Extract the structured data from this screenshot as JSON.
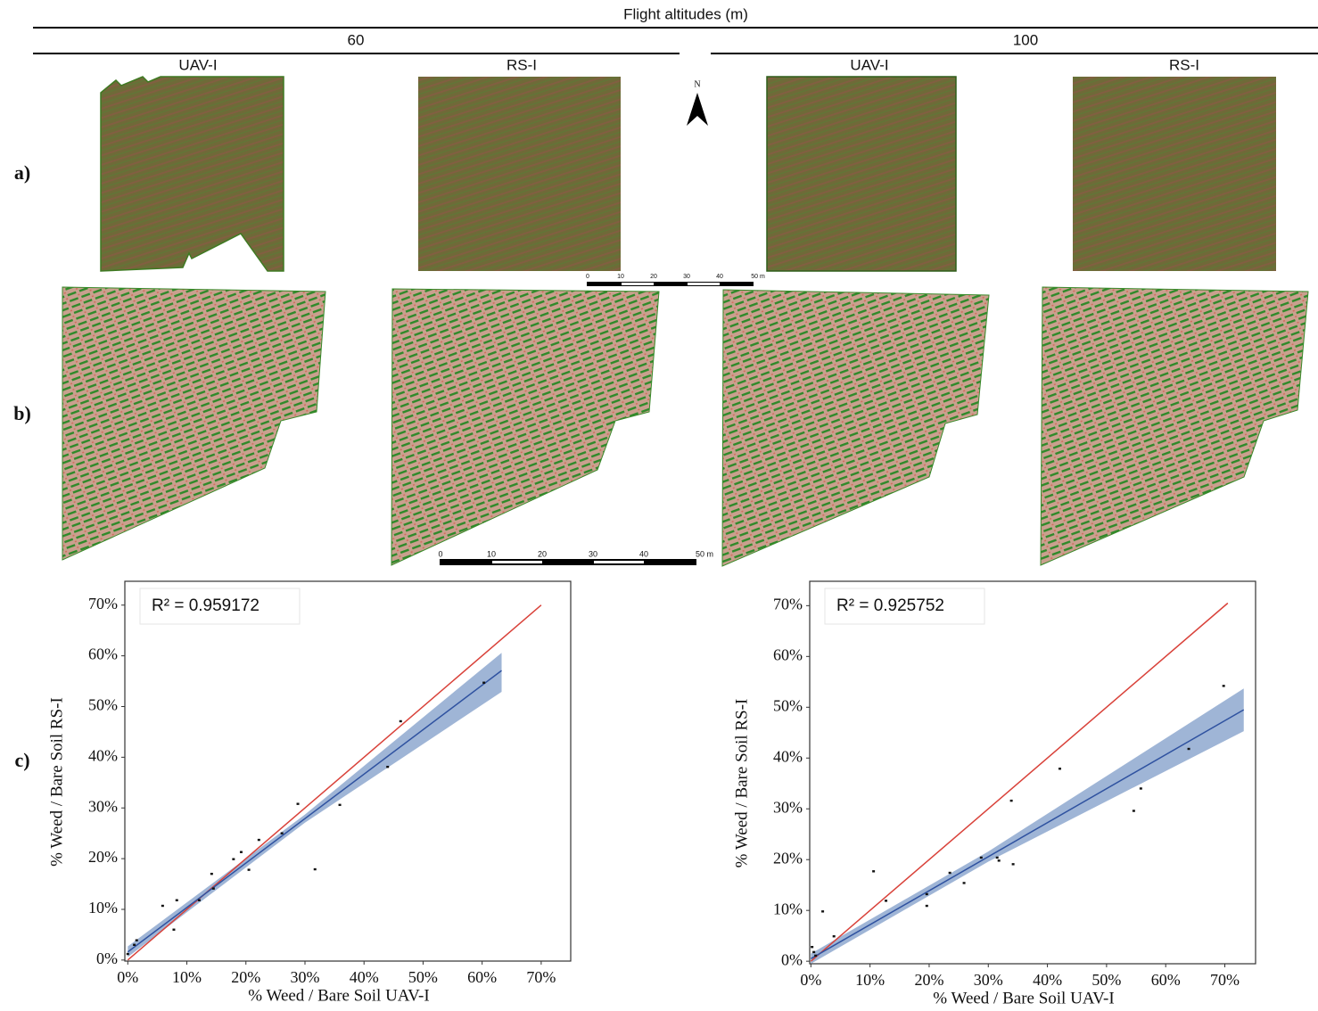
{
  "header": {
    "title": "Flight altitudes (m)",
    "altitudes": [
      "60",
      "100"
    ],
    "sensors": [
      "UAV-I",
      "RS-I",
      "UAV-I",
      "RS-I"
    ]
  },
  "row_labels": [
    "a)",
    "b)",
    "c)"
  ],
  "north": "N",
  "scale_bar": [
    "0",
    "10",
    "20",
    "30",
    "40",
    "50 m"
  ],
  "chart_data": [
    {
      "type": "scatter",
      "annotation": "R² = 0.959172",
      "x_label": "% Weed / Bare Soil UAV-I",
      "y_label": "% Weed / Bare Soil RS-I",
      "xlim": [
        -0.5,
        75
      ],
      "ylim": [
        -0.2,
        74.7
      ],
      "xticks": [
        {
          "value": 0,
          "label": "0%"
        },
        {
          "value": 10,
          "label": "10%"
        },
        {
          "value": 20,
          "label": "20%"
        },
        {
          "value": 30,
          "label": "30%"
        },
        {
          "value": 40,
          "label": "40%"
        },
        {
          "value": 50,
          "label": "50%"
        },
        {
          "value": 60,
          "label": "60%"
        },
        {
          "value": 70,
          "label": "70%"
        }
      ],
      "yticks": [
        {
          "value": 0,
          "label": "0%"
        },
        {
          "value": 10,
          "label": "10%"
        },
        {
          "value": 20,
          "label": "20%"
        },
        {
          "value": 30,
          "label": "30%"
        },
        {
          "value": 40,
          "label": "40%"
        },
        {
          "value": 50,
          "label": "50%"
        },
        {
          "value": 60,
          "label": "60%"
        },
        {
          "value": 70,
          "label": "70%"
        }
      ],
      "points": {
        "color": "#111111",
        "x": [
          0,
          1.1,
          1.5,
          5.9,
          8.3,
          7.8,
          12.1,
          14.2,
          14.5,
          17.9,
          19.2,
          20.5,
          22.2,
          26.1,
          28.8,
          31.7,
          35.9,
          44.0,
          46.2,
          60.3
        ],
        "y": [
          1.2,
          3.0,
          3.9,
          10.7,
          11.8,
          6.0,
          11.8,
          17.0,
          14.1,
          19.9,
          21.3,
          17.8,
          23.7,
          25.0,
          30.8,
          17.9,
          30.6,
          38.1,
          47.1,
          54.7
        ]
      },
      "band": {
        "color": "#7f9cc8",
        "x": [
          0,
          30,
          63.3
        ],
        "lower": [
          0.6,
          27.1,
          52.9
        ],
        "upper": [
          2.7,
          28.7,
          60.6
        ]
      },
      "fit_line": {
        "color": "#2f52a0",
        "x": [
          0,
          63.3
        ],
        "y": [
          1.6,
          57.1
        ]
      },
      "identity_line": {
        "color": "#d9423a",
        "x": [
          0,
          70
        ],
        "y": [
          0,
          70
        ]
      }
    },
    {
      "type": "scatter",
      "annotation": "R² = 0.925752",
      "x_label": "% Weed / Bare Soil UAV-I",
      "y_label": "% Weed / Bare Soil RS-I",
      "xlim": [
        -0.2,
        75.2
      ],
      "ylim": [
        -0.5,
        74.8
      ],
      "xticks": [
        {
          "value": 0,
          "label": "0%"
        },
        {
          "value": 10,
          "label": "10%"
        },
        {
          "value": 20,
          "label": "20%"
        },
        {
          "value": 30,
          "label": "30%"
        },
        {
          "value": 40,
          "label": "40%"
        },
        {
          "value": 50,
          "label": "50%"
        },
        {
          "value": 60,
          "label": "60%"
        },
        {
          "value": 70,
          "label": "70%"
        }
      ],
      "yticks": [
        {
          "value": 0,
          "label": "0%"
        },
        {
          "value": 10,
          "label": "10%"
        },
        {
          "value": 20,
          "label": "20%"
        },
        {
          "value": 30,
          "label": "30%"
        },
        {
          "value": 40,
          "label": "40%"
        },
        {
          "value": 50,
          "label": "50%"
        },
        {
          "value": 60,
          "label": "60%"
        },
        {
          "value": 70,
          "label": "70%"
        }
      ],
      "points": {
        "color": "#111111",
        "x": [
          0.2,
          0.5,
          0.8,
          2.0,
          3.9,
          10.6,
          12.7,
          19.6,
          19.6,
          23.5,
          25.9,
          28.8,
          31.5,
          31.8,
          33.9,
          34.2,
          42.1,
          54.6,
          55.8,
          63.9,
          69.8
        ],
        "y": [
          2.8,
          1.8,
          1.1,
          9.8,
          4.9,
          17.7,
          11.9,
          13.2,
          10.9,
          17.4,
          15.4,
          20.4,
          20.4,
          19.8,
          31.6,
          19.1,
          37.9,
          29.6,
          34.0,
          41.8,
          54.2
        ]
      },
      "band": {
        "color": "#7f9cc8",
        "x": [
          0,
          30,
          73.2
        ],
        "lower": [
          -0.5,
          19.6,
          45.3
        ],
        "upper": [
          1.5,
          21.6,
          53.7
        ]
      },
      "fit_line": {
        "color": "#2f52a0",
        "x": [
          0,
          73.2
        ],
        "y": [
          0.5,
          49.5
        ]
      },
      "identity_line": {
        "color": "#d9423a",
        "x": [
          0,
          70.5
        ],
        "y": [
          0,
          70.5
        ]
      }
    }
  ]
}
